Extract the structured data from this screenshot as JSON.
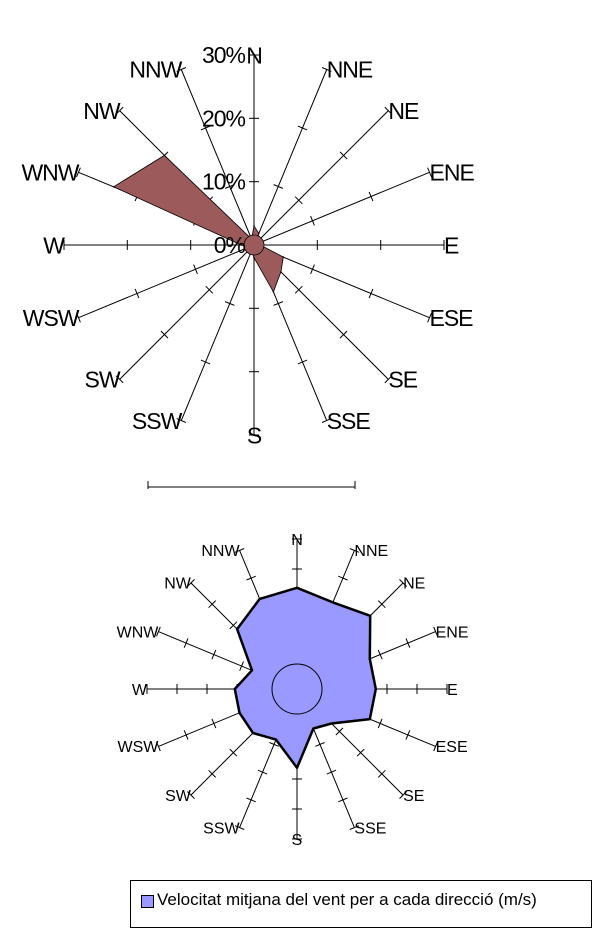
{
  "chart_data": [
    {
      "type": "radar",
      "directions": [
        "N",
        "NNE",
        "NE",
        "ENE",
        "E",
        "ESE",
        "SE",
        "SSE",
        "S",
        "SSW",
        "SW",
        "WSW",
        "W",
        "WNW",
        "NW",
        "NNW"
      ],
      "values": [
        3,
        2,
        1,
        1,
        1,
        5,
        6,
        8,
        2,
        1,
        1,
        1,
        2,
        24,
        20,
        1
      ],
      "tick_labels": [
        "0%",
        "10%",
        "20%",
        "30%"
      ],
      "rlim": [
        0,
        30
      ],
      "series_color": "#9c5a5a",
      "series_stroke": "#000000",
      "grid": false
    },
    {
      "type": "radar",
      "directions": [
        "N",
        "NNE",
        "NE",
        "ENE",
        "E",
        "ESE",
        "SE",
        "SSE",
        "S",
        "SSW",
        "SW",
        "WSW",
        "W",
        "WNW",
        "NW",
        "NNW"
      ],
      "series": [
        {
          "name": "Velocitat mitjana del vent per a cada direcció (m/s)",
          "values": [
            13.5,
            12.5,
            13.8,
            10.5,
            10.5,
            10.5,
            6.5,
            5.7,
            10.5,
            7.3,
            8.3,
            8.3,
            8.3,
            6.5,
            11.3,
            13.0
          ]
        }
      ],
      "rlim": [
        0,
        20
      ],
      "series_color": "#9999ff",
      "series_stroke": "#000000",
      "grid": false,
      "legend": "bottom"
    }
  ]
}
